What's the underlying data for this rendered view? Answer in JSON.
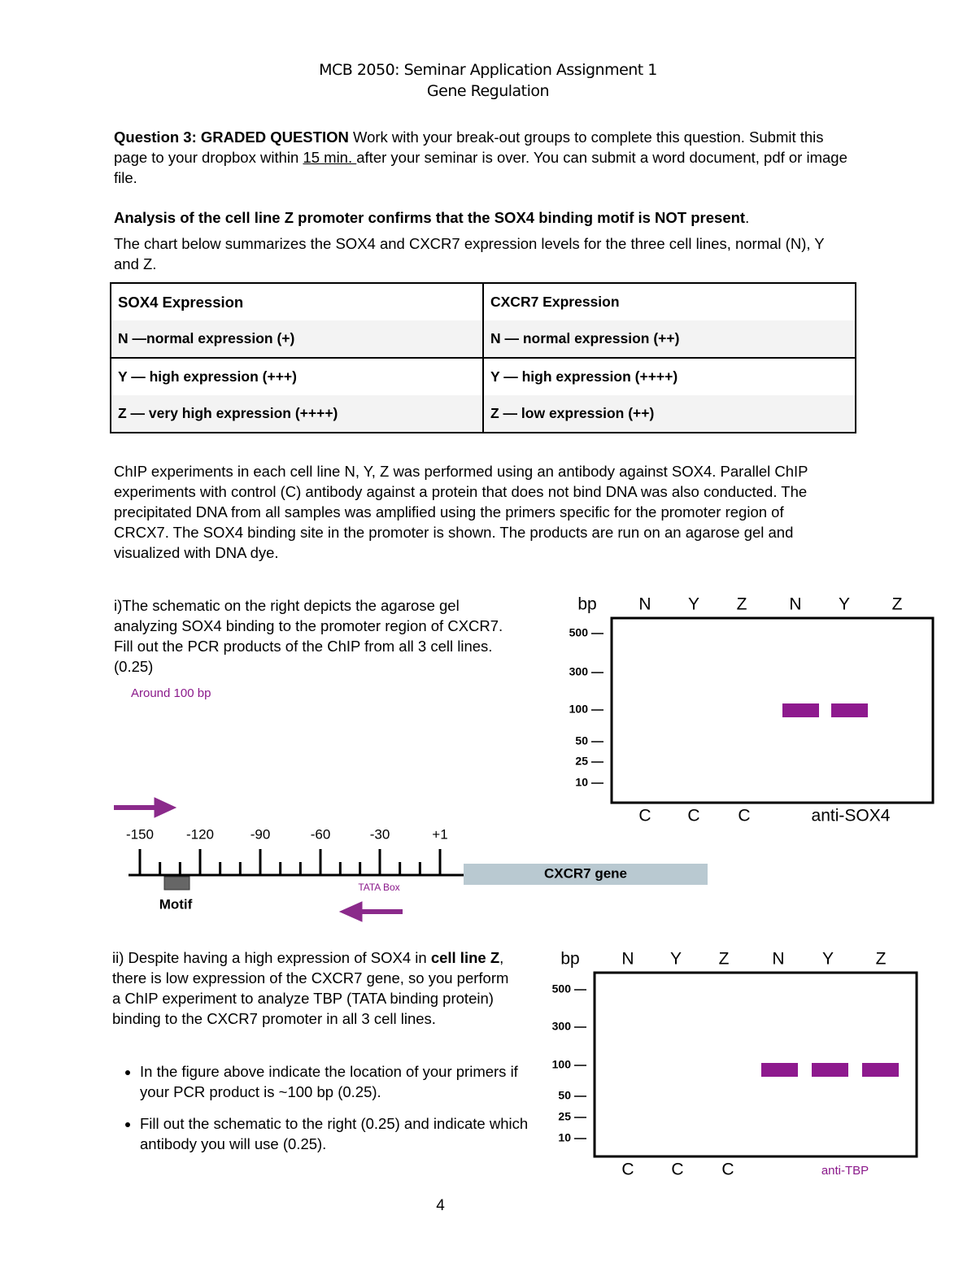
{
  "header": {
    "title": "MCB 2050: Seminar Application Assignment 1",
    "subtitle": "Gene Regulation"
  },
  "question": {
    "label": "Question 3: GRADED QUESTION",
    "text_before": "Work with your break-out groups to complete this question. Submit this page to your dropbox within",
    "deadline": "15 min. ",
    "text_after": "after your seminar is over. You can submit a word document, pdf or image file."
  },
  "finding": {
    "text": "Analysis of the cell line Z promoter confirms that the SOX4 binding motif is NOT present",
    "end": "."
  },
  "intro": "The chart below summarizes the SOX4 and CXCR7 expression levels for the three cell lines, normal (N), Y and Z.",
  "table": {
    "headers": [
      "SOX4 Expression",
      "CXCR7 Expression"
    ],
    "rows": [
      [
        "N —normal expression (+)",
        "N — normal expression (++)"
      ],
      [
        "Y — high expression (+++)",
        "Y — high expression (++++)"
      ],
      [
        "Z — very high expression (++++)",
        "Z — low expression (++)"
      ]
    ]
  },
  "chip_text": "ChIP experiments in each cell line N, Y, Z was performed using an antibody against SOX4. Parallel ChIP experiments with control (C) antibody against a protein that does not bind DNA was also conducted. The precipitated DNA from all samples was amplified using the primers specific for the promoter region of CRCX7. The SOX4 binding site in the promoter is shown. The products are run on an agarose gel and visualized with DNA dye.",
  "part_i": {
    "text": "i)The schematic on the right depicts the agarose gel analyzing SOX4 binding to the promoter region of CXCR7. Fill out the PCR products of the ChIP from all 3 cell lines. (0.25)",
    "answer": "Around 100 bp"
  },
  "gel_1": {
    "unit": "bp",
    "lanes": [
      "N",
      "Y",
      "Z",
      "N",
      "Y",
      "Z"
    ],
    "markers": [
      "500",
      "300",
      "100",
      "50",
      "25",
      "10"
    ],
    "controls": [
      "C",
      "C",
      "C"
    ],
    "antibody": "anti-SOX4"
  },
  "promoter": {
    "positions": [
      "-150",
      "-120",
      "-90",
      "-60",
      "-30",
      "+1"
    ],
    "gene": "CXCR7 gene",
    "motif": "Motif",
    "tata": "TATA Box"
  },
  "part_ii": {
    "text_before": "ii) Despite having a high expression of SOX4 in",
    "emphasis": "cell line Z",
    "text_after": ", there is low expression of the CXCR7 gene, so you perform a ChIP experiment to analyze TBP (TATA binding protein) binding to the CXCR7 promoter in all 3 cell lines.",
    "bullets": [
      "In the figure above indicate the location of your primers if your PCR product is ~100 bp (0.25).",
      "Fill out the schematic to the right (0.25) and indicate which antibody you will use (0.25)."
    ]
  },
  "gel_2": {
    "unit": "bp",
    "lanes": [
      "N",
      "Y",
      "Z",
      "N",
      "Y",
      "Z"
    ],
    "markers": [
      "500",
      "300",
      "100",
      "50",
      "25",
      "10"
    ],
    "controls": [
      "C",
      "C",
      "C"
    ],
    "antibody": "anti-TBP"
  },
  "page_number": "4"
}
